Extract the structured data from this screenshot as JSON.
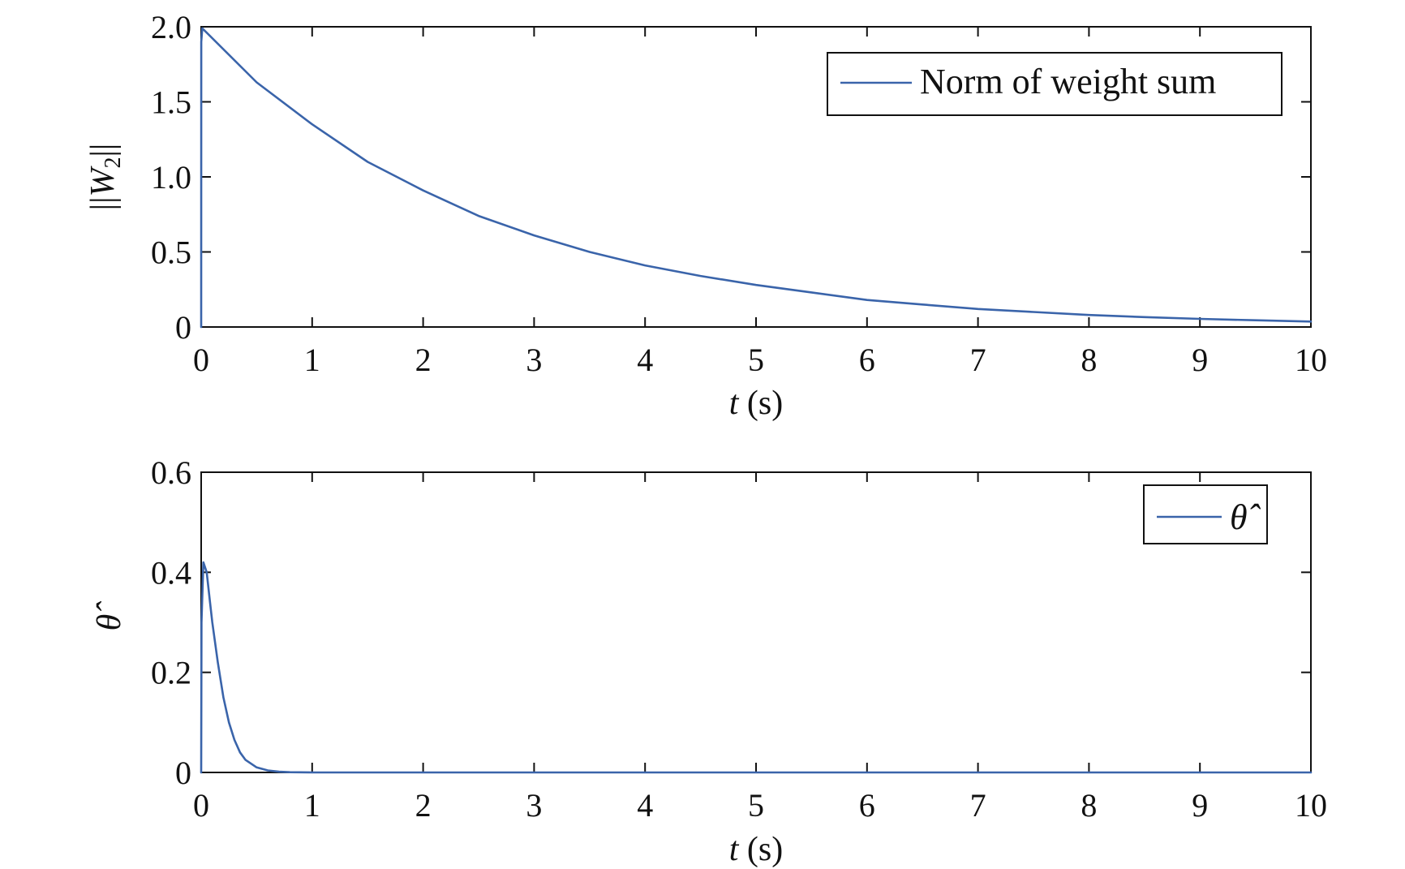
{
  "colors": {
    "series": "#3a64aa",
    "axis": "#111111"
  },
  "chart_data": [
    {
      "type": "line",
      "xlabel": "t (s)",
      "xlabel_var": "t",
      "xlabel_unit": "(s)",
      "ylabel": "||W2||",
      "ylabel_var": "W",
      "ylabel_sub": "2",
      "xlim": [
        0,
        10
      ],
      "ylim": [
        0,
        2
      ],
      "x_ticks": [
        0,
        1,
        2,
        3,
        4,
        5,
        6,
        7,
        8,
        9,
        10
      ],
      "x_tick_labels": [
        "0",
        "1",
        "2",
        "3",
        "4",
        "5",
        "6",
        "7",
        "8",
        "9",
        "10"
      ],
      "y_ticks": [
        0,
        0.5,
        1.0,
        1.5,
        2.0
      ],
      "y_tick_labels": [
        "0",
        "0.5",
        "1.0",
        "1.5",
        "2.0"
      ],
      "grid": false,
      "legend": "top-right",
      "series": [
        {
          "name": "Norm of weight sum",
          "x": [
            0,
            0.001,
            0.01,
            0.5,
            1,
            1.5,
            2,
            2.5,
            3,
            3.5,
            4,
            4.5,
            5,
            5.5,
            6,
            6.5,
            7,
            7.5,
            8,
            8.5,
            9,
            9.5,
            10
          ],
          "y": [
            0,
            1.9,
            1.99,
            1.63,
            1.35,
            1.1,
            0.91,
            0.74,
            0.61,
            0.5,
            0.41,
            0.34,
            0.28,
            0.23,
            0.18,
            0.15,
            0.12,
            0.1,
            0.08,
            0.066,
            0.054,
            0.045,
            0.036
          ]
        }
      ]
    },
    {
      "type": "line",
      "xlabel": "t (s)",
      "xlabel_var": "t",
      "xlabel_unit": "(s)",
      "ylabel": "θ̂",
      "xlim": [
        0,
        10
      ],
      "ylim": [
        0,
        0.6
      ],
      "x_ticks": [
        0,
        1,
        2,
        3,
        4,
        5,
        6,
        7,
        8,
        9,
        10
      ],
      "x_tick_labels": [
        "0",
        "1",
        "2",
        "3",
        "4",
        "5",
        "6",
        "7",
        "8",
        "9",
        "10"
      ],
      "y_ticks": [
        0,
        0.2,
        0.4,
        0.6
      ],
      "y_tick_labels": [
        "0",
        "0.2",
        "0.4",
        "0.6"
      ],
      "grid": false,
      "legend": "top-right",
      "series": [
        {
          "name": "θ̂",
          "x": [
            0,
            0.003,
            0.02,
            0.05,
            0.08,
            0.1,
            0.15,
            0.2,
            0.25,
            0.3,
            0.35,
            0.4,
            0.5,
            0.6,
            0.7,
            0.8,
            1,
            2,
            3,
            4,
            5,
            6,
            7,
            8,
            9,
            10
          ],
          "y": [
            0,
            0.3,
            0.42,
            0.4,
            0.34,
            0.3,
            0.22,
            0.15,
            0.1,
            0.065,
            0.04,
            0.025,
            0.01,
            0.004,
            0.0015,
            0.0005,
            0,
            0,
            0,
            0,
            0,
            0,
            0,
            0,
            0,
            0
          ]
        }
      ]
    }
  ]
}
